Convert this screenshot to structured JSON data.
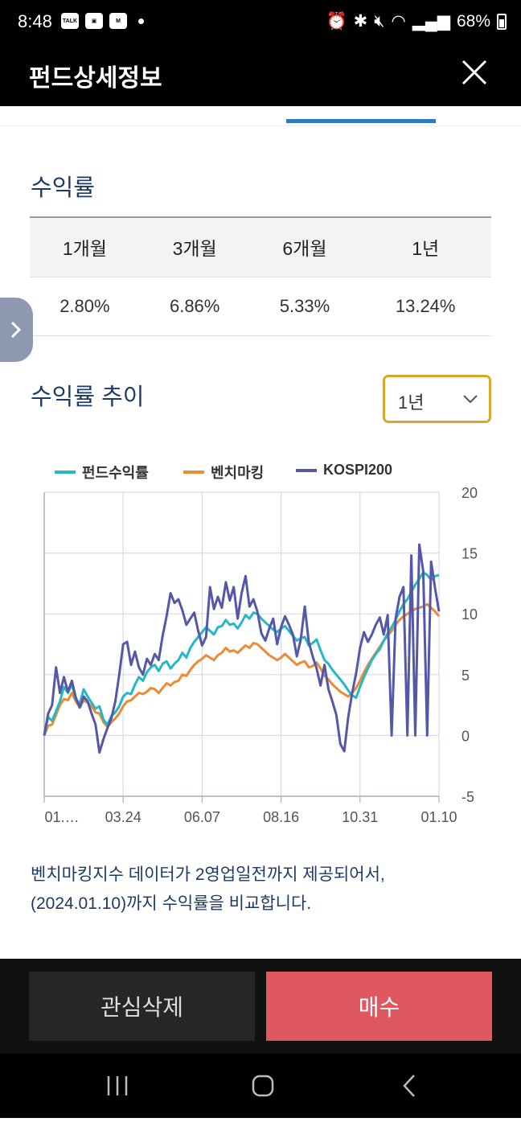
{
  "status": {
    "time": "8:48",
    "battery": "68%"
  },
  "header": {
    "title": "펀드상세정보"
  },
  "returns": {
    "title": "수익률",
    "periods": [
      "1개월",
      "3개월",
      "6개월",
      "1년"
    ],
    "values": [
      "2.80%",
      "6.86%",
      "5.33%",
      "13.24%"
    ]
  },
  "trend": {
    "title": "수익률 추이",
    "period_select": "1년"
  },
  "colors": {
    "fund": "#26b8c6",
    "bench": "#ec8a35",
    "kospi": "#5558a8",
    "accent": "#dca62a",
    "buy": "#e0585f"
  },
  "chart_data": {
    "type": "line",
    "x_tick_labels": [
      "01.…",
      "03.24",
      "06.07",
      "08.16",
      "10.31",
      "01.10"
    ],
    "ylim": [
      -5,
      20
    ],
    "y_ticks": [
      20,
      15,
      10,
      5,
      0,
      -5
    ],
    "grid": true,
    "legend_position": "top",
    "series": [
      {
        "name": "펀드수익률",
        "values": [
          0,
          1.5,
          1.2,
          2,
          2.8,
          4,
          3.5,
          4.2,
          3,
          2.6,
          3.8,
          3.2,
          2.7,
          2.2,
          2.4,
          1.3,
          0.9,
          1.6,
          1.9,
          2.4,
          3.2,
          3.5,
          3.4,
          4.2,
          4.8,
          4.5,
          5.2,
          5.6,
          5.8,
          5.3,
          5.9,
          6.1,
          5.5,
          5.9,
          6.2,
          6.8,
          6.4,
          7.2,
          7.7,
          8.1,
          8.5,
          8.9,
          8.6,
          8.3,
          8.9,
          9,
          9.5,
          9.1,
          9.2,
          8.8,
          9.3,
          9.9,
          9.6,
          10.1,
          10,
          9.6,
          9.3,
          9,
          8.7,
          8.5,
          8.8,
          9,
          8.6,
          8.2,
          7.8,
          8,
          8.1,
          7.4,
          7.6,
          7.9,
          7,
          6.2,
          5.9,
          5.4,
          5,
          4.6,
          4.2,
          3.7,
          3.3,
          3.1,
          4,
          4.8,
          5.5,
          6.2,
          6.7,
          7.1,
          7.8,
          8.4,
          8.9,
          9.5,
          10.2,
          10.8,
          11.2,
          11.8,
          12.4,
          12.9,
          13.4,
          13.2,
          12.8,
          13.1,
          13.2
        ]
      },
      {
        "name": "벤치마킹",
        "values": [
          0,
          0.8,
          0.9,
          1.7,
          2.5,
          3,
          2.9,
          3.5,
          2.8,
          2.3,
          2.9,
          2.7,
          2.4,
          1.9,
          1.8,
          1.1,
          0.7,
          1.1,
          1.4,
          1.8,
          2.4,
          2.8,
          2.9,
          3.2,
          3.5,
          3.4,
          3.6,
          3.9,
          3.8,
          3.5,
          3.9,
          4.3,
          4.1,
          4.4,
          4.5,
          5,
          4.9,
          5.4,
          5.8,
          6.1,
          6.3,
          6.6,
          6.4,
          6.2,
          6.6,
          6.8,
          7.2,
          6.9,
          7,
          6.8,
          7.1,
          7.4,
          7.2,
          7.6,
          7.5,
          7.2,
          6.9,
          6.6,
          6.4,
          6.2,
          6.4,
          6.7,
          6.4,
          6.1,
          5.8,
          6,
          6.1,
          5.6,
          5.7,
          6,
          5.5,
          4.9,
          4.6,
          4.2,
          3.9,
          3.6,
          3.4,
          3.2,
          3.5,
          3.9,
          4.5,
          5.2,
          5.8,
          6.3,
          6.8,
          7.3,
          7.8,
          8.2,
          8.6,
          9.1,
          9.5,
          9.8,
          10,
          10.2,
          10.4,
          10.5,
          10.6,
          10.8,
          10.5,
          10.2,
          9.8
        ]
      },
      {
        "name": "KOSPI200",
        "values": [
          0,
          1.8,
          2.5,
          5.6,
          3.5,
          4.8,
          3.6,
          4.5,
          3.1,
          2.3,
          3.2,
          2.8,
          1.8,
          0.9,
          -1.4,
          -0.3,
          0.6,
          1.4,
          2.8,
          5,
          7.5,
          7.7,
          5.8,
          6.9,
          5.6,
          5,
          6.3,
          5.8,
          6.7,
          6.2,
          8.2,
          9.8,
          11.7,
          10.9,
          11.2,
          10.3,
          9.1,
          9.6,
          10.1,
          8.6,
          7.4,
          8.1,
          12.2,
          10.4,
          11.4,
          10.5,
          12.6,
          11.1,
          12.2,
          9.6,
          11.7,
          13.1,
          10.6,
          11.2,
          10.2,
          8.4,
          7.8,
          8.8,
          9.6,
          7.5,
          8.9,
          9.8,
          9.1,
          8.3,
          6.5,
          7.9,
          10.6,
          7.7,
          6.5,
          5.5,
          4.1,
          5.8,
          3.8,
          2.8,
          1.7,
          -0.7,
          -1.3,
          1.5,
          3.5,
          5.1,
          7.2,
          8.5,
          7.7,
          8.3,
          9.1,
          9.7,
          8.3,
          9.9,
          0,
          9.6,
          11.4,
          12.2,
          0,
          14.8,
          0,
          15.7,
          13.5,
          0,
          14.3,
          12.1,
          10.2
        ]
      }
    ]
  },
  "note": {
    "line1": "벤치마킹지수 데이터가 2영업일전까지 제공되어서,",
    "line2": "(2024.01.10)까지 수익률을 비교합니다."
  },
  "buttons": {
    "delete": "관심삭제",
    "buy": "매수"
  }
}
